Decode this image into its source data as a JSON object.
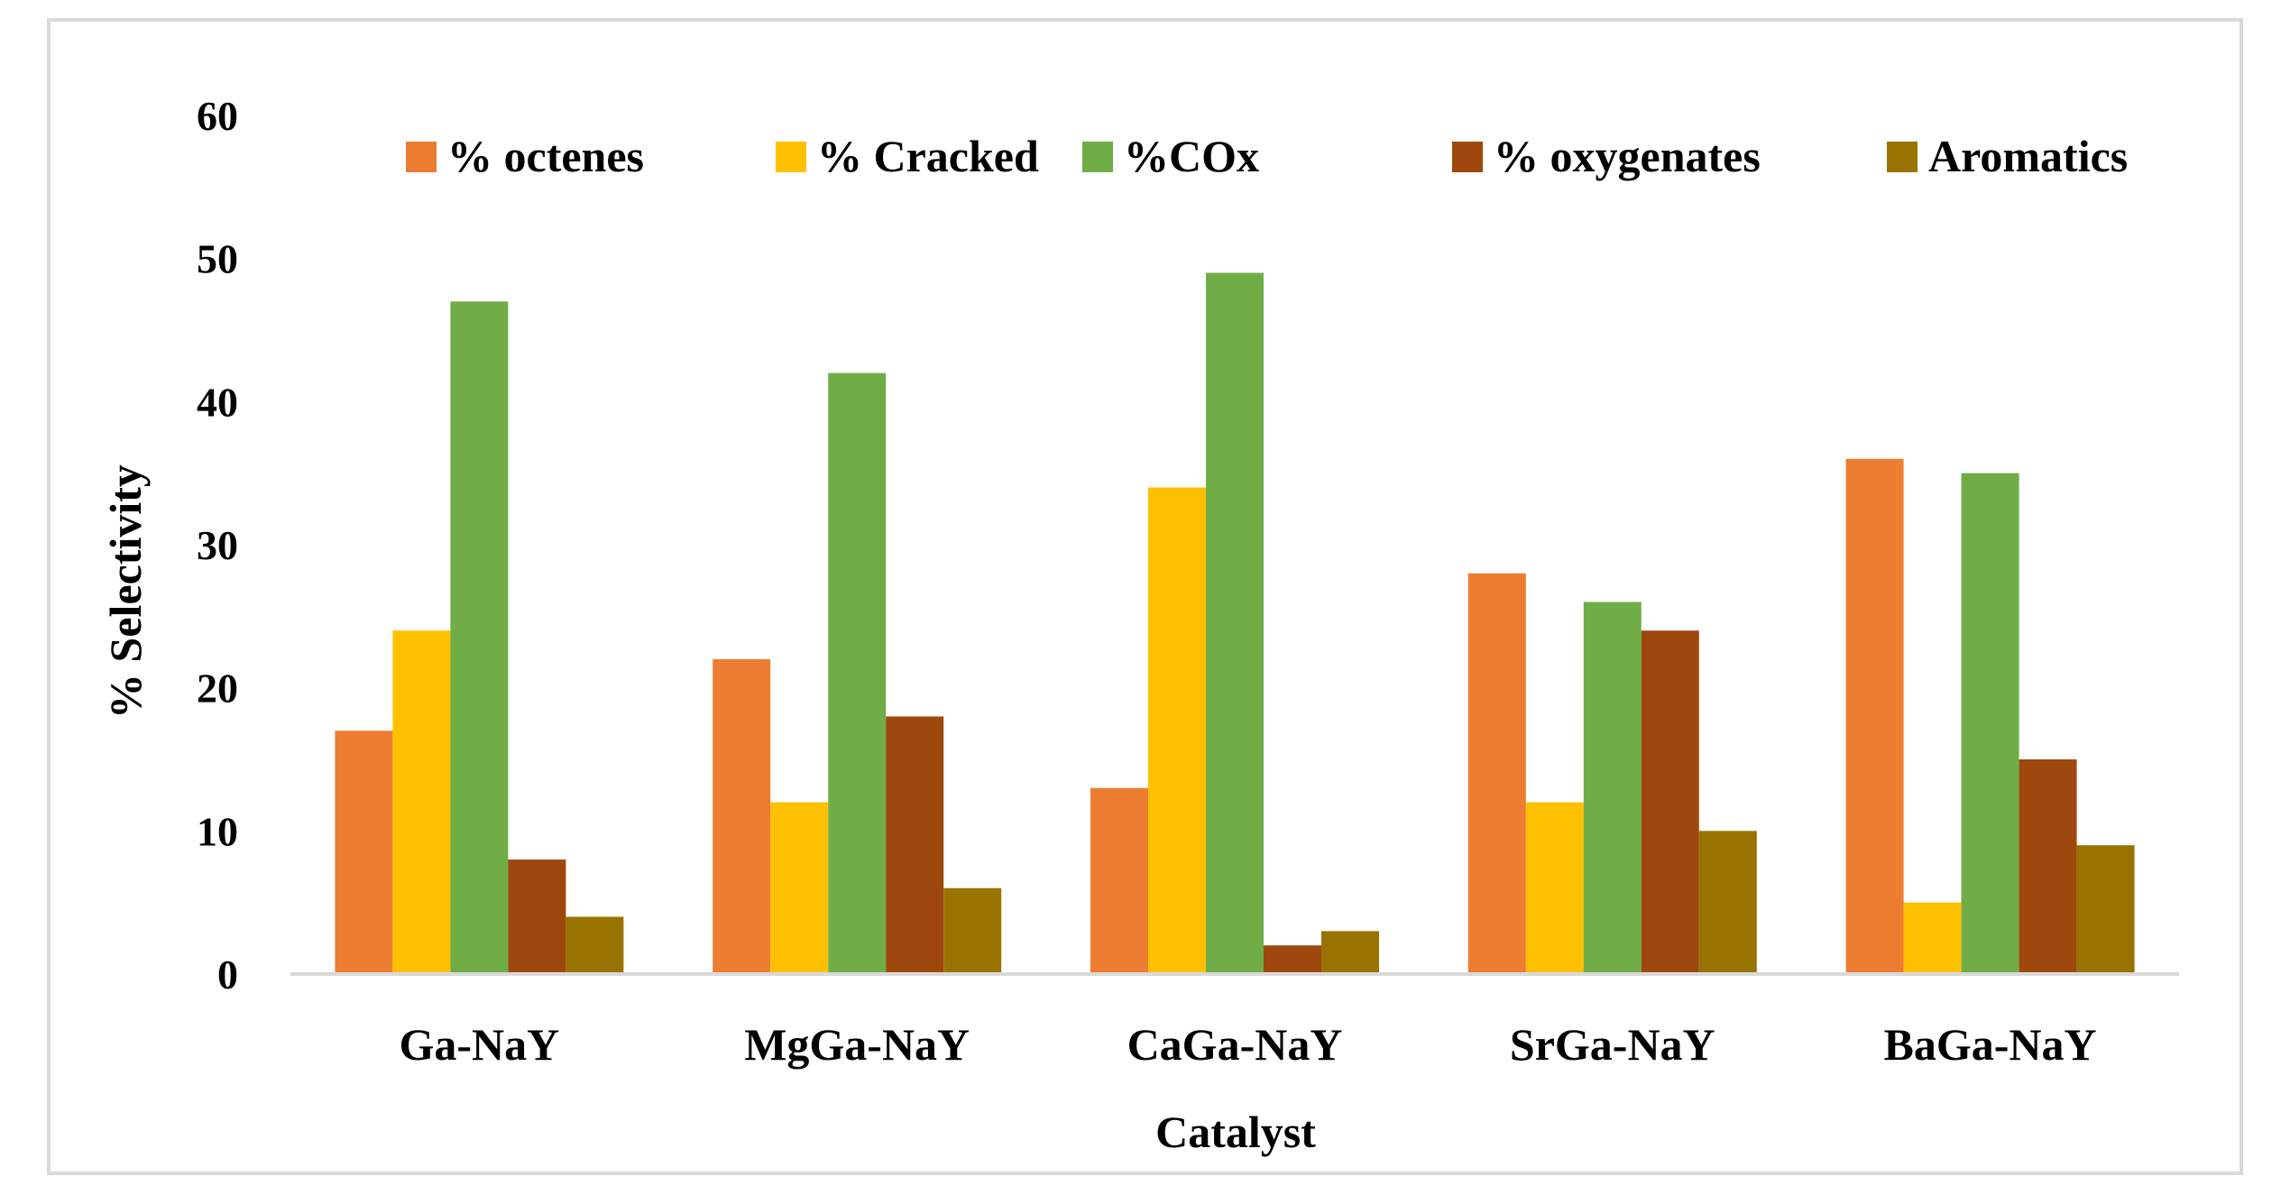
{
  "chart_data": {
    "type": "bar",
    "title": "",
    "xlabel": "Catalyst",
    "ylabel": "% Selectivity",
    "ylim": [
      0,
      60
    ],
    "yticks": [
      0,
      10,
      20,
      30,
      40,
      50,
      60
    ],
    "grid": false,
    "legend_position": "top",
    "categories": [
      "Ga-NaY",
      "MgGa-NaY",
      "CaGa-NaY",
      "SrGa-NaY",
      "BaGa-NaY"
    ],
    "series": [
      {
        "name": "% octenes",
        "color": "#ED7D31",
        "values": [
          17,
          22,
          13,
          28,
          36
        ]
      },
      {
        "name": "% Cracked",
        "color": "#FFC000",
        "values": [
          24,
          12,
          34,
          12,
          5
        ]
      },
      {
        "name": "%COx",
        "color": "#70AD47",
        "values": [
          47,
          42,
          49,
          26,
          35
        ]
      },
      {
        "name": "% oxygenates",
        "color": "#9E480E",
        "values": [
          8,
          18,
          2,
          24,
          15
        ]
      },
      {
        "name": "Aromatics",
        "color": "#997300",
        "values": [
          4,
          6,
          3,
          10,
          9
        ]
      }
    ],
    "axis_color": "#d9d9d9"
  }
}
